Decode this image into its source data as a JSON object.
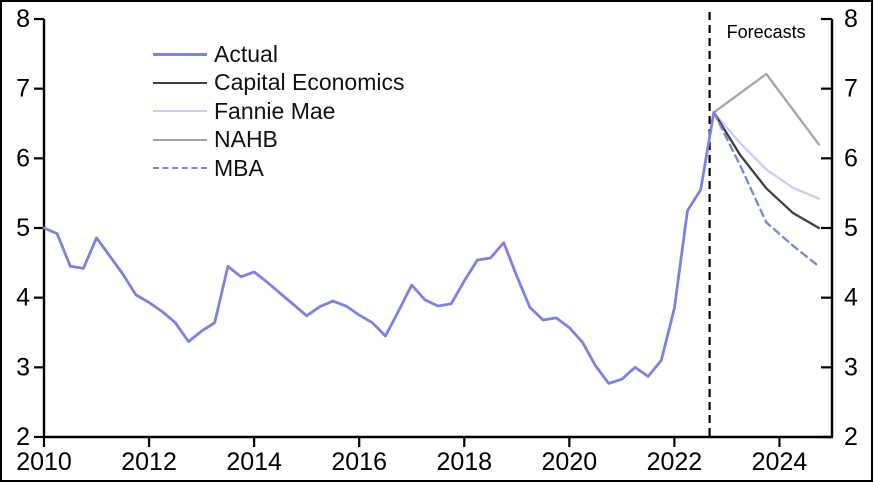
{
  "chart_data": {
    "type": "line",
    "title": "",
    "xlabel": "",
    "ylabel": "",
    "xlim": [
      2010,
      2025
    ],
    "ylim": [
      2,
      8
    ],
    "xticks": [
      2010,
      2012,
      2014,
      2016,
      2018,
      2020,
      2022,
      2024
    ],
    "yticks": [
      2,
      3,
      4,
      5,
      6,
      7,
      8
    ],
    "grid": false,
    "dual_y_axis": true,
    "legend_position": "top-left",
    "forecast_divider": {
      "x": 2022.67,
      "label": "Forecasts"
    },
    "colors": {
      "actual": "#7C82E5",
      "capital_economics": "#3F3F3F",
      "fannie_mae": "#C8CDF3",
      "nahb": "#A6A6A6",
      "mba": "#7C82E5",
      "axis": "#000000"
    },
    "series": [
      {
        "name": "Actual",
        "key": "actual",
        "color": "#7C82E5",
        "dash": null,
        "width": 2.8,
        "points": [
          [
            2010.0,
            5.0
          ],
          [
            2010.25,
            4.92
          ],
          [
            2010.5,
            4.45
          ],
          [
            2010.75,
            4.42
          ],
          [
            2011.0,
            4.86
          ],
          [
            2011.25,
            4.6
          ],
          [
            2011.5,
            4.34
          ],
          [
            2011.75,
            4.04
          ],
          [
            2012.0,
            3.93
          ],
          [
            2012.25,
            3.8
          ],
          [
            2012.5,
            3.64
          ],
          [
            2012.75,
            3.37
          ],
          [
            2013.0,
            3.52
          ],
          [
            2013.25,
            3.64
          ],
          [
            2013.5,
            4.45
          ],
          [
            2013.75,
            4.3
          ],
          [
            2014.0,
            4.37
          ],
          [
            2014.25,
            4.22
          ],
          [
            2014.5,
            4.06
          ],
          [
            2014.75,
            3.9
          ],
          [
            2015.0,
            3.74
          ],
          [
            2015.25,
            3.87
          ],
          [
            2015.5,
            3.95
          ],
          [
            2015.75,
            3.88
          ],
          [
            2016.0,
            3.75
          ],
          [
            2016.25,
            3.64
          ],
          [
            2016.5,
            3.45
          ],
          [
            2016.75,
            3.81
          ],
          [
            2017.0,
            4.18
          ],
          [
            2017.25,
            3.97
          ],
          [
            2017.5,
            3.88
          ],
          [
            2017.75,
            3.91
          ],
          [
            2018.0,
            4.24
          ],
          [
            2018.25,
            4.54
          ],
          [
            2018.5,
            4.57
          ],
          [
            2018.75,
            4.79
          ],
          [
            2019.0,
            4.31
          ],
          [
            2019.25,
            3.86
          ],
          [
            2019.5,
            3.68
          ],
          [
            2019.75,
            3.71
          ],
          [
            2020.0,
            3.57
          ],
          [
            2020.25,
            3.36
          ],
          [
            2020.5,
            3.02
          ],
          [
            2020.75,
            2.77
          ],
          [
            2021.0,
            2.83
          ],
          [
            2021.25,
            3.0
          ],
          [
            2021.5,
            2.87
          ],
          [
            2021.75,
            3.1
          ],
          [
            2022.0,
            3.85
          ],
          [
            2022.25,
            5.25
          ],
          [
            2022.5,
            5.55
          ],
          [
            2022.75,
            6.66
          ]
        ]
      },
      {
        "name": "Capital Economics",
        "key": "capital_economics",
        "color": "#3F3F3F",
        "dash": null,
        "width": 2.3,
        "points": [
          [
            2022.75,
            6.66
          ],
          [
            2023.25,
            6.05
          ],
          [
            2023.75,
            5.57
          ],
          [
            2024.25,
            5.22
          ],
          [
            2024.75,
            5.0
          ]
        ]
      },
      {
        "name": "Fannie Mae",
        "key": "fannie_mae",
        "color": "#C8CDF3",
        "dash": null,
        "width": 2.3,
        "points": [
          [
            2022.75,
            6.66
          ],
          [
            2023.25,
            6.22
          ],
          [
            2023.75,
            5.84
          ],
          [
            2024.25,
            5.58
          ],
          [
            2024.75,
            5.42
          ]
        ]
      },
      {
        "name": "NAHB",
        "key": "nahb",
        "color": "#A6A6A6",
        "dash": null,
        "width": 2.3,
        "points": [
          [
            2022.75,
            6.66
          ],
          [
            2023.75,
            7.21
          ],
          [
            2024.75,
            6.2
          ]
        ]
      },
      {
        "name": "MBA",
        "key": "mba",
        "color": "#7C82E5",
        "dash": "7 5",
        "width": 2.3,
        "points": [
          [
            2022.75,
            6.66
          ],
          [
            2023.25,
            5.9
          ],
          [
            2023.75,
            5.08
          ],
          [
            2024.25,
            4.75
          ],
          [
            2024.75,
            4.45
          ]
        ]
      }
    ]
  }
}
